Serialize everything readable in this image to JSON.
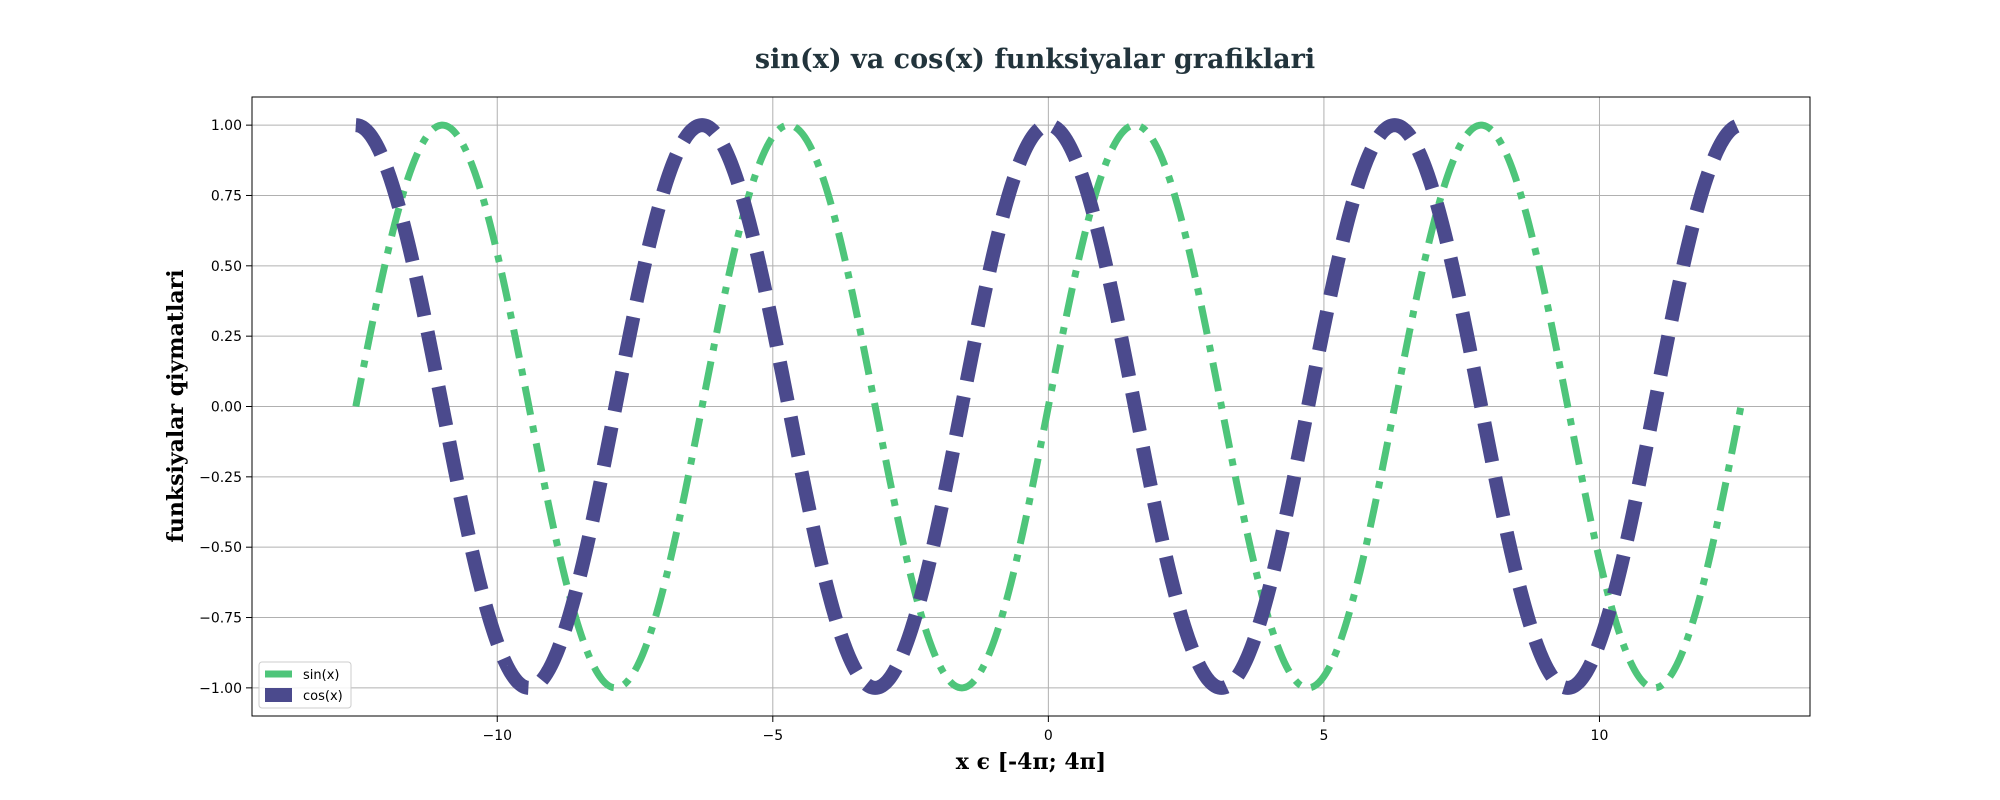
{
  "chart_data": {
    "type": "line",
    "title": "sin(x) va cos(x) funksiyalar grafiklari",
    "xlabel": "x є [-4π; 4π]",
    "ylabel": "funksiyalar qiymatlari",
    "xlim": [
      -14.45,
      13.82
    ],
    "ylim": [
      -1.1,
      1.1
    ],
    "x_domain": [
      -12.566,
      12.566
    ],
    "x_ticks": [
      -10,
      -5,
      0,
      5,
      10
    ],
    "x_tick_labels": [
      "−10",
      "−5",
      "0",
      "5",
      "10"
    ],
    "y_ticks": [
      1.0,
      0.75,
      0.5,
      0.25,
      0.0,
      -0.25,
      -0.5,
      -0.75,
      -1.0
    ],
    "y_tick_labels": [
      "1.00",
      "0.75",
      "0.50",
      "0.25",
      "0.00",
      "−0.25",
      "−0.50",
      "−0.75",
      "−1.00"
    ],
    "grid": true,
    "legend_position": "lower-left",
    "series": [
      {
        "name": "sin(x)",
        "function": "sin",
        "color": "#4ec57a",
        "line_style": "dash-dot"
      },
      {
        "name": "cos(x)",
        "function": "cos",
        "color": "#4b4a8d",
        "line_style": "dashed"
      }
    ]
  }
}
